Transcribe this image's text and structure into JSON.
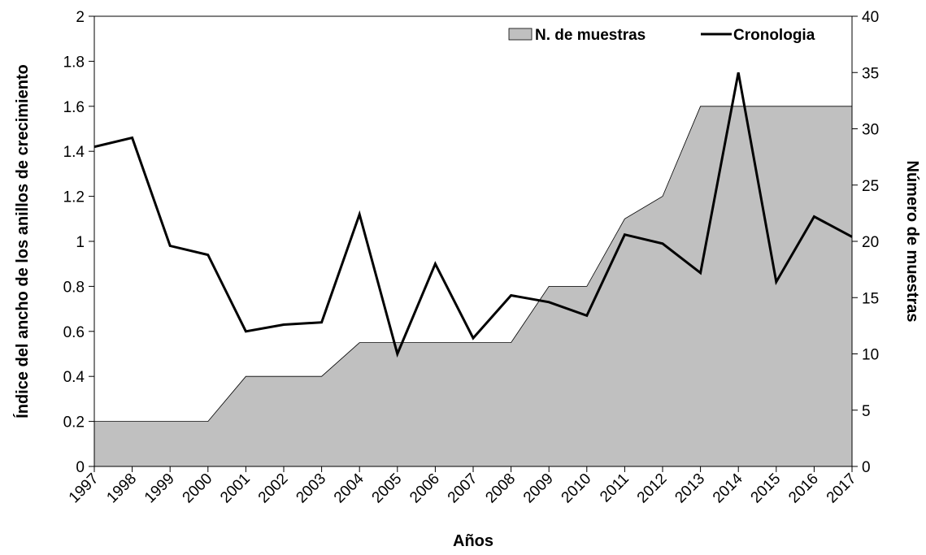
{
  "chart_data": {
    "type": "line",
    "title": "",
    "xlabel": "Años",
    "ylabel": "Índice del ancho de los anillos de crecimiento",
    "y2label": "Número de muestras",
    "ylim": [
      0,
      2
    ],
    "y2lim": [
      0,
      40
    ],
    "yticks": [
      "0",
      "0.2",
      "0.4",
      "0.6",
      "0.8",
      "1",
      "1.2",
      "1.4",
      "1.6",
      "1.8",
      "2"
    ],
    "y2ticks": [
      "0",
      "5",
      "10",
      "15",
      "20",
      "25",
      "30",
      "35",
      "40"
    ],
    "categories": [
      "1997",
      "1998",
      "1999",
      "2000",
      "2001",
      "2002",
      "2003",
      "2004",
      "2005",
      "2006",
      "2007",
      "2008",
      "2009",
      "2010",
      "2011",
      "2012",
      "2013",
      "2014",
      "2015",
      "2016",
      "2017"
    ],
    "legend_position": "top-right",
    "grid": false,
    "series": [
      {
        "name": "N. de muestras",
        "type": "area",
        "axis": "right",
        "color": "#c0c0c0",
        "values": [
          4,
          4,
          4,
          4,
          8,
          8,
          8,
          11,
          11,
          11,
          11,
          11,
          16,
          16,
          22,
          24,
          32,
          32,
          32,
          32,
          32
        ]
      },
      {
        "name": "Cronologia",
        "type": "line",
        "axis": "left",
        "color": "#000000",
        "values": [
          1.42,
          1.46,
          0.98,
          0.94,
          0.6,
          0.63,
          0.64,
          1.12,
          0.5,
          0.9,
          0.57,
          0.76,
          0.73,
          0.67,
          1.03,
          0.99,
          0.86,
          1.75,
          0.82,
          1.11,
          1.02
        ]
      }
    ]
  }
}
